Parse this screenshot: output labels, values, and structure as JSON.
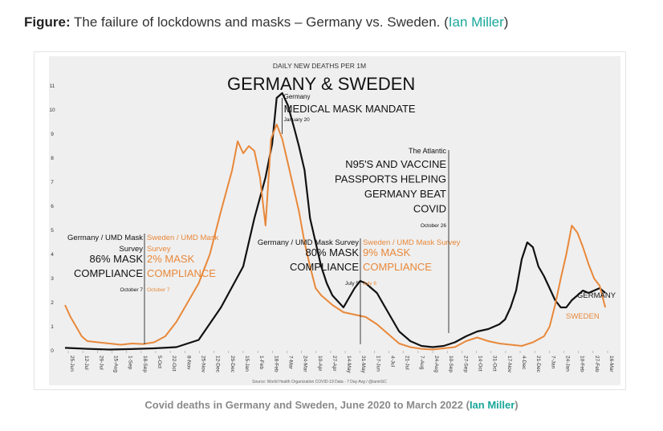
{
  "figure": {
    "label": "Figure:",
    "caption": " The failure of lockdowns and masks – Germany vs. Sweden. (",
    "author": "Ian Miller",
    "close": ")"
  },
  "bottom_caption": {
    "text": "Covid deaths in Germany and Sweden, June 2020 to March 2022 (",
    "author": "Ian Miller",
    "close": ")"
  },
  "colors": {
    "germany": "#111111",
    "sweden": "#e8883a",
    "bg": "#efefef"
  },
  "chart_data": {
    "type": "line",
    "title": "GERMANY & SWEDEN",
    "subtitle": "DAILY NEW DEATHS PER 1M",
    "source": "Source: World Health Organization COVID-19 Data · 7 Day Avg / @ianmSC",
    "ylim": [
      0,
      11
    ],
    "yticks": [
      "0",
      "1",
      "2",
      "3",
      "4",
      "5",
      "6",
      "7",
      "8",
      "9",
      "10",
      "11"
    ],
    "xticks": [
      "25-Jun",
      "12-Jul",
      "29-Jul",
      "15-Aug",
      "1-Sep",
      "18-Sep",
      "5-Oct",
      "22-Oct",
      "8-Nov",
      "25-Nov",
      "12-Dec",
      "29-Dec",
      "15-Jan",
      "1-Feb",
      "18-Feb",
      "7-Mar",
      "24-Mar",
      "10-Apr",
      "27-Apr",
      "14-May",
      "31-May",
      "17-Jun",
      "4-Jul",
      "21-Jul",
      "7-Aug",
      "24-Aug",
      "10-Sep",
      "27-Sep",
      "14-Oct",
      "31-Oct",
      "17-Nov",
      "4-Dec",
      "21-Dec",
      "7-Jan",
      "24-Jan",
      "10-Feb",
      "27-Feb",
      "16-Mar"
    ],
    "series": [
      {
        "name": "GERMANY",
        "color": "#111111",
        "points": [
          [
            0,
            0.12
          ],
          [
            2,
            0.08
          ],
          [
            4,
            0.05
          ],
          [
            6,
            0.07
          ],
          [
            8,
            0.1
          ],
          [
            10,
            0.15
          ],
          [
            12,
            0.45
          ],
          [
            14,
            1.8
          ],
          [
            16,
            3.5
          ],
          [
            17,
            5.5
          ],
          [
            18,
            7.2
          ],
          [
            18.6,
            8.6
          ],
          [
            19,
            10.5
          ],
          [
            19.5,
            10.7
          ],
          [
            20,
            10.2
          ],
          [
            20.6,
            9.2
          ],
          [
            21,
            8.5
          ],
          [
            21.5,
            7.5
          ],
          [
            22,
            5.5
          ],
          [
            22.5,
            4.5
          ],
          [
            23,
            3.5
          ],
          [
            23.5,
            2.8
          ],
          [
            24,
            2.3
          ],
          [
            25,
            1.8
          ],
          [
            26,
            2.6
          ],
          [
            26.5,
            2.9
          ],
          [
            27,
            2.8
          ],
          [
            27.5,
            2.6
          ],
          [
            28,
            2.4
          ],
          [
            29,
            1.6
          ],
          [
            30,
            0.8
          ],
          [
            31,
            0.4
          ],
          [
            32,
            0.2
          ],
          [
            33,
            0.15
          ],
          [
            34,
            0.2
          ],
          [
            35,
            0.35
          ],
          [
            36,
            0.6
          ],
          [
            37,
            0.8
          ],
          [
            38,
            0.9
          ],
          [
            39,
            1.1
          ],
          [
            39.5,
            1.3
          ],
          [
            40,
            1.8
          ],
          [
            40.5,
            2.5
          ],
          [
            41,
            3.8
          ],
          [
            41.5,
            4.5
          ],
          [
            42,
            4.3
          ],
          [
            42.5,
            3.5
          ],
          [
            43,
            3.1
          ],
          [
            43.5,
            2.6
          ],
          [
            44,
            2.1
          ],
          [
            44.5,
            1.8
          ],
          [
            45,
            1.8
          ],
          [
            45.5,
            2.1
          ],
          [
            46,
            2.3
          ],
          [
            46.5,
            2.5
          ],
          [
            47,
            2.4
          ],
          [
            47.5,
            2.5
          ],
          [
            48,
            2.6
          ],
          [
            48.5,
            2.4
          ]
        ]
      },
      {
        "name": "SWEDEN",
        "color": "#e8883a",
        "points": [
          [
            0,
            1.9
          ],
          [
            0.5,
            1.4
          ],
          [
            1,
            1.0
          ],
          [
            1.5,
            0.6
          ],
          [
            2,
            0.4
          ],
          [
            3,
            0.35
          ],
          [
            4,
            0.3
          ],
          [
            5,
            0.25
          ],
          [
            6,
            0.3
          ],
          [
            7,
            0.28
          ],
          [
            8,
            0.35
          ],
          [
            9,
            0.6
          ],
          [
            10,
            1.2
          ],
          [
            11,
            2.0
          ],
          [
            12,
            2.8
          ],
          [
            13,
            4.0
          ],
          [
            14,
            5.8
          ],
          [
            15,
            7.5
          ],
          [
            15.5,
            8.7
          ],
          [
            16,
            8.2
          ],
          [
            16.5,
            8.5
          ],
          [
            17,
            8.3
          ],
          [
            17.5,
            7.2
          ],
          [
            18,
            5.2
          ],
          [
            18.5,
            8.8
          ],
          [
            19,
            9.4
          ],
          [
            19.5,
            8.8
          ],
          [
            20,
            7.8
          ],
          [
            21,
            5.8
          ],
          [
            21.5,
            4.5
          ],
          [
            22,
            3.5
          ],
          [
            22.5,
            2.6
          ],
          [
            23,
            2.3
          ],
          [
            24,
            1.9
          ],
          [
            25,
            1.6
          ],
          [
            26,
            1.5
          ],
          [
            27,
            1.4
          ],
          [
            28,
            1.1
          ],
          [
            29,
            0.7
          ],
          [
            30,
            0.3
          ],
          [
            31,
            0.15
          ],
          [
            32,
            0.08
          ],
          [
            33,
            0.05
          ],
          [
            34,
            0.1
          ],
          [
            35,
            0.15
          ],
          [
            36,
            0.4
          ],
          [
            37,
            0.55
          ],
          [
            38,
            0.4
          ],
          [
            39,
            0.3
          ],
          [
            40,
            0.25
          ],
          [
            41,
            0.2
          ],
          [
            42,
            0.35
          ],
          [
            43,
            0.6
          ],
          [
            43.5,
            1.0
          ],
          [
            44,
            1.9
          ],
          [
            44.5,
            3.0
          ],
          [
            45,
            4.0
          ],
          [
            45.5,
            5.2
          ],
          [
            46,
            4.9
          ],
          [
            46.5,
            4.3
          ],
          [
            47,
            3.6
          ],
          [
            47.5,
            3.0
          ],
          [
            48,
            2.7
          ],
          [
            48.5,
            1.8
          ]
        ]
      }
    ],
    "x_range": [
      0,
      49
    ],
    "annotations": [
      {
        "text": "Germany",
        "bold": false,
        "x": 19.5,
        "y": 10.4
      },
      {
        "text": "MEDICAL MASK MANDATE",
        "big": true,
        "x": 19.5,
        "y": 10.0
      },
      {
        "text": "January 20",
        "x": 19.5,
        "y": 9.4
      }
    ],
    "series_labels": [
      "GERMANY",
      "SWEDEN"
    ],
    "event_lines": [
      {
        "x": 10.5,
        "de_lines": [
          "Germany / UMD Mask",
          "Survey",
          "86% MASK",
          "COMPLIANCE",
          "October 7"
        ],
        "se_lines": [
          "Sweden / UMD Mask",
          "Survey",
          "2% MASK",
          "COMPLIANCE",
          "October 7"
        ]
      },
      {
        "x": 36.5,
        "de_lines": [
          "Germany / UMD Mask Survey",
          "80% MASK",
          "COMPLIANCE",
          "July 5"
        ],
        "se_lines": [
          "Sweden / UMD Mask Survey",
          "9% MASK",
          "COMPLIANCE",
          "July 6"
        ]
      }
    ],
    "atlantic": {
      "x": 43.6,
      "lines": [
        "The Atlantic",
        "N95'S AND VACCINE",
        "PASSPORTS HELPING",
        "GERMANY BEAT",
        "COVID",
        "October 26"
      ]
    }
  }
}
